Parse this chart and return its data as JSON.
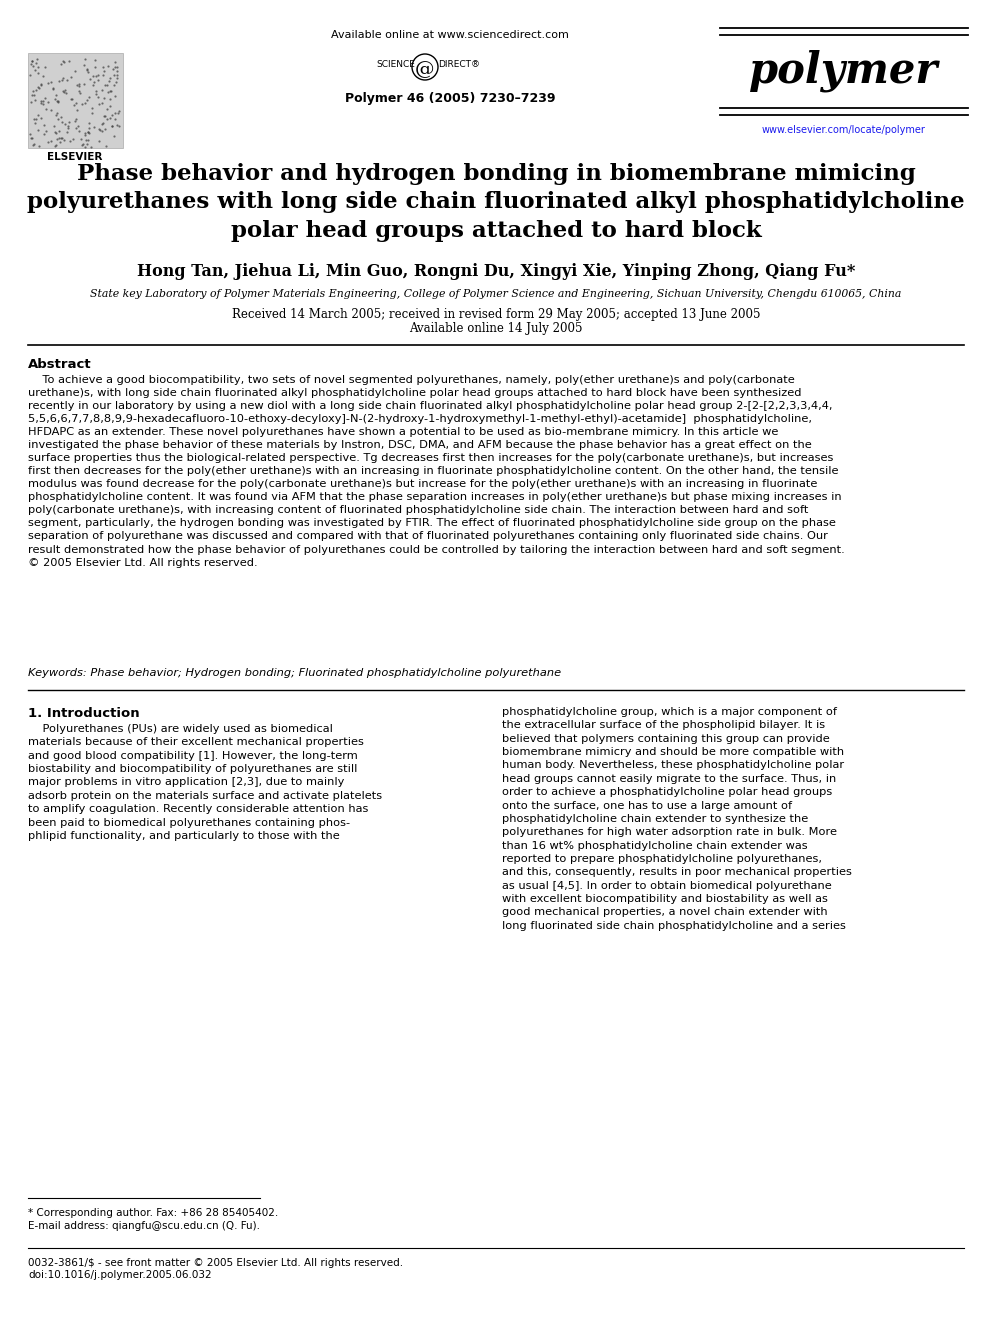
{
  "background_color": "#ffffff",
  "header": {
    "available_online_text": "Available online at www.sciencedirect.com",
    "journal_name": "polymer",
    "journal_url": "www.elsevier.com/locate/polymer",
    "journal_info": "Polymer 46 (2005) 7230–7239"
  },
  "title": "Phase behavior and hydrogen bonding in biomembrane mimicing\npolyurethanes with long side chain fluorinated alkyl phosphatidylcholine\npolar head groups attached to hard block",
  "authors": "Hong Tan, Jiehua Li, Min Guo, Rongni Du, Xingyi Xie, Yinping Zhong, Qiang Fu*",
  "affiliation": "State key Laboratory of Polymer Materials Engineering, College of Polymer Science and Engineering, Sichuan University, Chengdu 610065, China",
  "received_line1": "Received 14 March 2005; received in revised form 29 May 2005; accepted 13 June 2005",
  "received_line2": "Available online 14 July 2005",
  "abstract_title": "Abstract",
  "abstract_text": "    To achieve a good biocompatibility, two sets of novel segmented polyurethanes, namely, poly(ether urethane)s and poly(carbonate\nurethane)s, with long side chain fluorinated alkyl phosphatidylcholine polar head groups attached to hard block have been synthesized\nrecently in our laboratory by using a new diol with a long side chain fluorinated alkyl phosphatidylcholine polar head group 2-[2-[2,2,3,3,4,4,\n5,5,6,6,7,7,8,8,9,9-hexadecafluoro-10-ethoxy-decyloxy]-N-(2-hydroxy-1-hydroxymethyl-1-methyl-ethyl)-acetamide]  phosphatidylcholine,\nHFDAPC as an extender. These novel polyurethanes have shown a potential to be used as bio-membrane mimicry. In this article we\ninvestigated the phase behavior of these materials by Instron, DSC, DMA, and AFM because the phase behavior has a great effect on the\nsurface properties thus the biological-related perspective. Tg decreases first then increases for the poly(carbonate urethane)s, but increases\nfirst then decreases for the poly(ether urethane)s with an increasing in fluorinate phosphatidylcholine content. On the other hand, the tensile\nmodulus was found decrease for the poly(carbonate urethane)s but increase for the poly(ether urethane)s with an increasing in fluorinate\nphosphatidylcholine content. It was found via AFM that the phase separation increases in poly(ether urethane)s but phase mixing increases in\npoly(carbonate urethane)s, with increasing content of fluorinated phosphatidylcholine side chain. The interaction between hard and soft\nsegment, particularly, the hydrogen bonding was investigated by FTIR. The effect of fluorinated phosphatidylcholine side group on the phase\nseparation of polyurethane was discussed and compared with that of fluorinated polyurethanes containing only fluorinated side chains. Our\nresult demonstrated how the phase behavior of polyurethanes could be controlled by tailoring the interaction between hard and soft segment.\n© 2005 Elsevier Ltd. All rights reserved.",
  "keywords": "Keywords: Phase behavior; Hydrogen bonding; Fluorinated phosphatidylcholine polyurethane",
  "section1_title": "1. Introduction",
  "section1_col1": "    Polyurethanes (PUs) are widely used as biomedical\nmaterials because of their excellent mechanical properties\nand good blood compatibility [1]. However, the long-term\nbiostability and biocompatibility of polyurethanes are still\nmajor problems in vitro application [2,3], due to mainly\nadsorb protein on the materials surface and activate platelets\nto amplify coagulation. Recently considerable attention has\nbeen paid to biomedical polyurethanes containing phos-\nphlipid functionality, and particularly to those with the",
  "section1_col2": "phosphatidylcholine group, which is a major component of\nthe extracellular surface of the phospholipid bilayer. It is\nbelieved that polymers containing this group can provide\nbiomembrane mimicry and should be more compatible with\nhuman body. Nevertheless, these phosphatidylcholine polar\nhead groups cannot easily migrate to the surface. Thus, in\norder to achieve a phosphatidylcholine polar head groups\nonto the surface, one has to use a large amount of\nphosphatidylcholine chain extender to synthesize the\npolyurethanes for high water adsorption rate in bulk. More\nthan 16 wt% phosphatidylcholine chain extender was\nreported to prepare phosphatidylcholine polyurethanes,\nand this, consequently, results in poor mechanical properties\nas usual [4,5]. In order to obtain biomedical polyurethane\nwith excellent biocompatibility and biostability as well as\ngood mechanical properties, a novel chain extender with\nlong fluorinated side chain phosphatidylcholine and a series",
  "footnote_star": "* Corresponding author. Fax: +86 28 85405402.",
  "footnote_email": "E-mail address: qiangfu@scu.edu.cn (Q. Fu).",
  "footnote_issn_line1": "0032-3861/$ - see front matter © 2005 Elsevier Ltd. All rights reserved.",
  "footnote_issn_line2": "doi:10.1016/j.polymer.2005.06.032"
}
